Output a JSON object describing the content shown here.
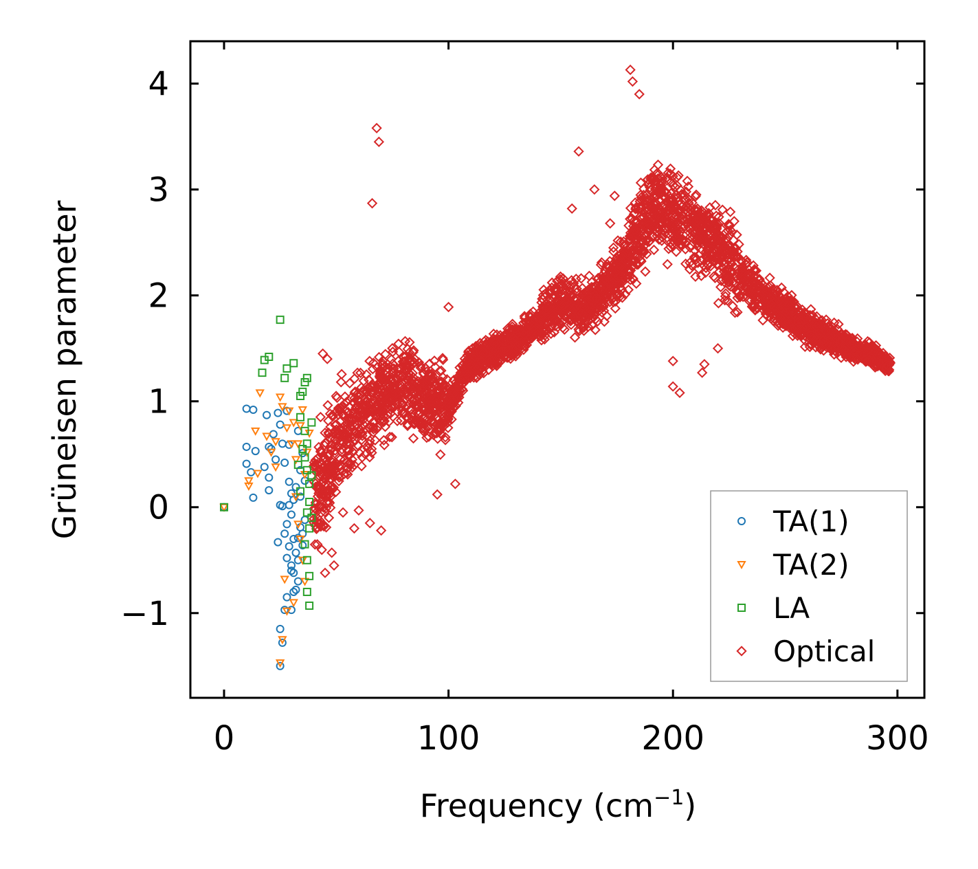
{
  "chart_data": {
    "type": "scatter",
    "xlabel": "Frequency (cm",
    "xlabel_sup": "−1",
    "xlabel_end": ")",
    "ylabel": "Grüneisen parameter",
    "xlim": [
      -15,
      312
    ],
    "ylim": [
      -1.8,
      4.4
    ],
    "xticks": [
      0,
      100,
      200,
      300
    ],
    "xtick_labels": [
      "0",
      "100",
      "200",
      "300"
    ],
    "yticks": [
      -1,
      0,
      1,
      2,
      3,
      4
    ],
    "ytick_labels": [
      "−1",
      "0",
      "1",
      "2",
      "3",
      "4"
    ],
    "legend_position": "lower-right",
    "series": [
      {
        "name": "TA(1)",
        "marker": "circle",
        "color": "#1f77b4",
        "points": [
          [
            0,
            0
          ],
          [
            10,
            0.93
          ],
          [
            13,
            0.92
          ],
          [
            10,
            0.57
          ],
          [
            14,
            0.53
          ],
          [
            10,
            0.41
          ],
          [
            12,
            0.33
          ],
          [
            13,
            0.09
          ],
          [
            19,
            0.87
          ],
          [
            20,
            0.57
          ],
          [
            21,
            0.55
          ],
          [
            18,
            0.38
          ],
          [
            20,
            0.28
          ],
          [
            20,
            0.16
          ],
          [
            22,
            0.69
          ],
          [
            23,
            0.45
          ],
          [
            24,
            0.89
          ],
          [
            25,
            0.78
          ],
          [
            26,
            0.6
          ],
          [
            27,
            0.42
          ],
          [
            25,
            0.02
          ],
          [
            26,
            0.01
          ],
          [
            28,
            0.91
          ],
          [
            29,
            0.59
          ],
          [
            29,
            0.24
          ],
          [
            30,
            0.13
          ],
          [
            31,
            0.07
          ],
          [
            30,
            -0.07
          ],
          [
            28,
            -0.16
          ],
          [
            24,
            -0.33
          ],
          [
            27,
            -0.25
          ],
          [
            29,
            -0.37
          ],
          [
            28,
            -0.48
          ],
          [
            30,
            -0.55
          ],
          [
            31,
            -0.62
          ],
          [
            32,
            -0.43
          ],
          [
            33,
            -0.29
          ],
          [
            34,
            -0.19
          ],
          [
            33,
            -0.5
          ],
          [
            35,
            -0.36
          ],
          [
            36,
            -0.12
          ],
          [
            31,
            -0.8
          ],
          [
            32,
            -0.78
          ],
          [
            28,
            -0.85
          ],
          [
            27,
            -0.97
          ],
          [
            30,
            -0.97
          ],
          [
            25,
            -1.15
          ],
          [
            26,
            -1.28
          ],
          [
            25,
            -1.5
          ],
          [
            34,
            0.35
          ],
          [
            35,
            0.51
          ],
          [
            33,
            0.72
          ],
          [
            36,
            0.25
          ],
          [
            32,
            0.19
          ],
          [
            29,
            0.02
          ],
          [
            34,
            0.1
          ],
          [
            35,
            -0.25
          ],
          [
            31,
            -0.3
          ],
          [
            33,
            -0.7
          ],
          [
            30,
            -0.6
          ]
        ]
      },
      {
        "name": "TA(2)",
        "marker": "triangle-down",
        "color": "#ff7f0e",
        "points": [
          [
            0,
            0
          ],
          [
            11,
            0.25
          ],
          [
            11,
            0.2
          ],
          [
            14,
            0.72
          ],
          [
            15,
            0.32
          ],
          [
            16,
            1.08
          ],
          [
            19,
            0.67
          ],
          [
            21,
            0.52
          ],
          [
            23,
            0.62
          ],
          [
            23,
            0.38
          ],
          [
            25,
            1.04
          ],
          [
            26,
            0.95
          ],
          [
            28,
            0.75
          ],
          [
            29,
            0.91
          ],
          [
            30,
            0.6
          ],
          [
            31,
            0.8
          ],
          [
            32,
            0.45
          ],
          [
            33,
            0.6
          ],
          [
            34,
            0.77
          ],
          [
            35,
            0.92
          ],
          [
            36,
            0.31
          ],
          [
            32,
            0.1
          ],
          [
            33,
            -0.16
          ],
          [
            34,
            -0.3
          ],
          [
            35,
            -0.5
          ],
          [
            36,
            -0.7
          ],
          [
            31,
            -0.9
          ],
          [
            28,
            -0.98
          ],
          [
            26,
            -1.25
          ],
          [
            25,
            -1.47
          ],
          [
            27,
            -0.68
          ],
          [
            37,
            0.52
          ],
          [
            38,
            0.7
          ]
        ]
      },
      {
        "name": "LA",
        "marker": "square",
        "color": "#2ca02c",
        "points": [
          [
            0,
            0
          ],
          [
            17,
            1.27
          ],
          [
            18,
            1.39
          ],
          [
            20,
            1.42
          ],
          [
            25,
            1.77
          ],
          [
            27,
            1.22
          ],
          [
            28,
            1.31
          ],
          [
            31,
            1.36
          ],
          [
            34,
            1.05
          ],
          [
            35,
            1.09
          ],
          [
            36,
            1.18
          ],
          [
            37,
            1.22
          ],
          [
            34,
            0.85
          ],
          [
            36,
            0.72
          ],
          [
            37,
            0.6
          ],
          [
            35,
            0.55
          ],
          [
            36,
            0.47
          ],
          [
            37,
            0.35
          ],
          [
            38,
            0.22
          ],
          [
            38,
            0.05
          ],
          [
            37,
            -0.05
          ],
          [
            38,
            -0.2
          ],
          [
            36,
            -0.35
          ],
          [
            37,
            -0.5
          ],
          [
            38,
            -0.65
          ],
          [
            37,
            -0.8
          ],
          [
            38,
            -0.93
          ],
          [
            39,
            0.3
          ],
          [
            39,
            0.8
          ],
          [
            39,
            -0.1
          ],
          [
            33,
            0.4
          ],
          [
            34,
            0.15
          ]
        ]
      },
      {
        "name": "Optical",
        "marker": "diamond",
        "color": "#d62728",
        "trend": [
          [
            40,
            0.05
          ],
          [
            50,
            0.55
          ],
          [
            60,
            0.8
          ],
          [
            70,
            1.05
          ],
          [
            80,
            1.15
          ],
          [
            90,
            1.0
          ],
          [
            100,
            0.95
          ],
          [
            110,
            1.35
          ],
          [
            120,
            1.48
          ],
          [
            130,
            1.55
          ],
          [
            140,
            1.75
          ],
          [
            150,
            1.95
          ],
          [
            160,
            1.85
          ],
          [
            170,
            2.05
          ],
          [
            180,
            2.35
          ],
          [
            190,
            2.85
          ],
          [
            200,
            2.75
          ],
          [
            210,
            2.65
          ],
          [
            220,
            2.45
          ],
          [
            230,
            2.2
          ],
          [
            240,
            2.0
          ],
          [
            250,
            1.85
          ],
          [
            260,
            1.7
          ],
          [
            270,
            1.6
          ],
          [
            280,
            1.5
          ],
          [
            290,
            1.42
          ],
          [
            297,
            1.33
          ]
        ],
        "extremes": [
          [
            181,
            4.13
          ],
          [
            182,
            4.02
          ],
          [
            185,
            3.9
          ],
          [
            68,
            3.58
          ],
          [
            69,
            3.45
          ],
          [
            66,
            2.87
          ],
          [
            158,
            3.36
          ],
          [
            165,
            3.0
          ],
          [
            174,
            2.94
          ],
          [
            155,
            2.82
          ],
          [
            172,
            2.68
          ],
          [
            100,
            1.89
          ],
          [
            200,
            1.14
          ],
          [
            203,
            1.08
          ],
          [
            200,
            1.38
          ],
          [
            214,
            1.35
          ],
          [
            213,
            1.27
          ],
          [
            220,
            1.5
          ],
          [
            70,
            -0.22
          ],
          [
            58,
            -0.2
          ],
          [
            65,
            -0.15
          ],
          [
            60,
            -0.03
          ],
          [
            48,
            -0.43
          ],
          [
            45,
            -0.62
          ],
          [
            49,
            -0.55
          ],
          [
            53,
            -0.05
          ],
          [
            95,
            0.12
          ],
          [
            103,
            0.22
          ],
          [
            44,
            1.45
          ],
          [
            46,
            1.4
          ]
        ]
      }
    ]
  }
}
